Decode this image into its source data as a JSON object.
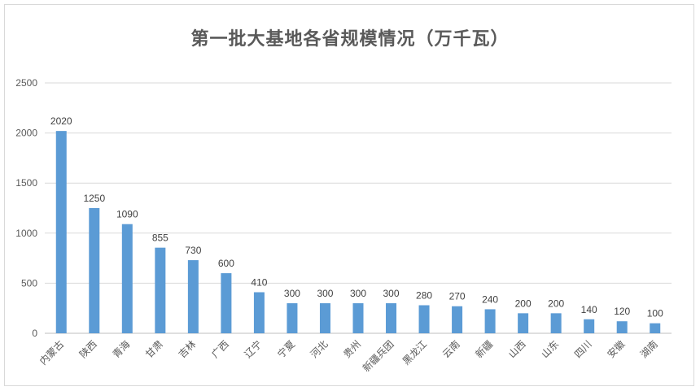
{
  "chart_data": {
    "type": "bar",
    "title": "第一批大基地各省规模情况（万千瓦）",
    "xlabel": "",
    "ylabel": "",
    "ylim": [
      0,
      2500
    ],
    "yticks": [
      0,
      500,
      1000,
      1500,
      2000,
      2500
    ],
    "grid": true,
    "legend": "none",
    "bar_color": "#5b9bd5",
    "categories": [
      "内蒙古",
      "陕西",
      "青海",
      "甘肃",
      "吉林",
      "广西",
      "辽宁",
      "宁夏",
      "河北",
      "贵州",
      "新疆兵团",
      "黑龙江",
      "云南",
      "新疆",
      "山西",
      "山东",
      "四川",
      "安徽",
      "湖南"
    ],
    "values": [
      2020,
      1250,
      1090,
      855,
      730,
      600,
      410,
      300,
      300,
      300,
      300,
      280,
      270,
      240,
      200,
      200,
      140,
      120,
      100
    ]
  }
}
